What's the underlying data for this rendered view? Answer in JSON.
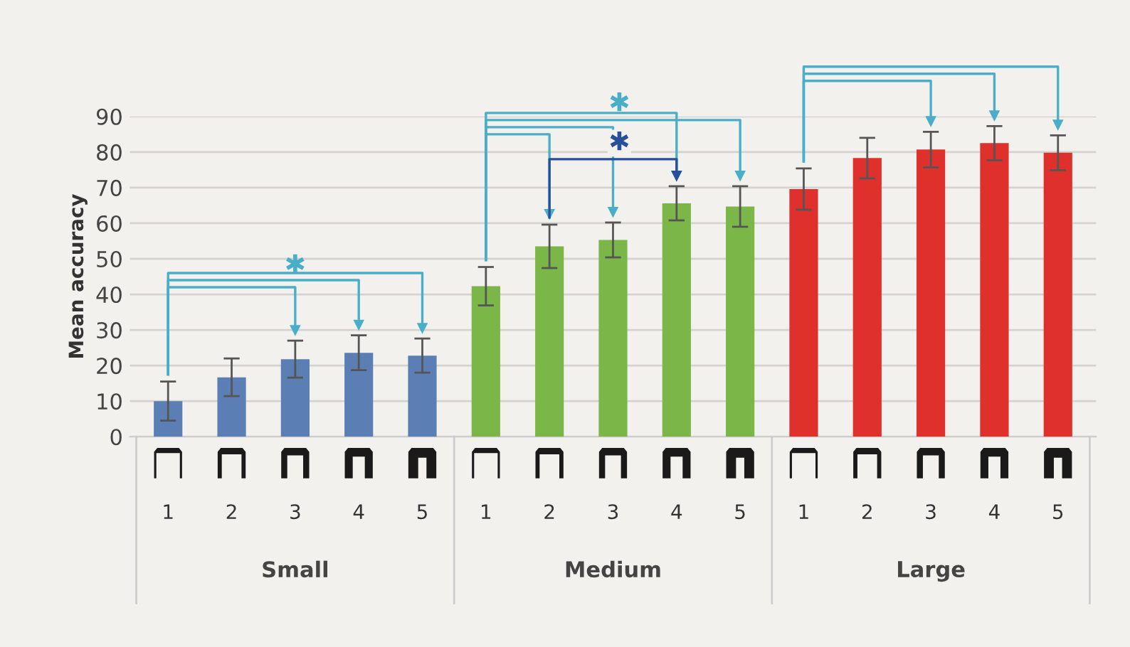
{
  "chart_data": {
    "type": "bar",
    "ylabel": "Mean accuracy",
    "categories": [
      "1",
      "2",
      "3",
      "4",
      "5",
      "1",
      "2",
      "3",
      "4",
      "5",
      "1",
      "2",
      "3",
      "4",
      "5"
    ],
    "values": [
      10,
      16.7,
      21.8,
      23.6,
      22.8,
      42.3,
      53.5,
      55.3,
      65.6,
      64.7,
      69.6,
      78.3,
      80.7,
      82.5,
      79.8
    ],
    "errors": [
      5.5,
      5.3,
      5.2,
      4.9,
      4.8,
      5.4,
      6.1,
      4.9,
      4.8,
      5.7,
      5.8,
      5.7,
      5.0,
      4.8,
      4.9
    ],
    "colors": [
      "#5b7fb5",
      "#5b7fb5",
      "#5b7fb5",
      "#5b7fb5",
      "#5b7fb5",
      "#7ab648",
      "#7ab648",
      "#7ab648",
      "#7ab648",
      "#7ab648",
      "#e0302b",
      "#e0302b",
      "#e0302b",
      "#e0302b",
      "#e0302b"
    ],
    "ylim": [
      0,
      90
    ],
    "yticks": [
      0,
      10,
      20,
      30,
      40,
      50,
      60,
      70,
      80,
      90
    ],
    "grid": "y",
    "annotations": [
      "Small",
      "Medium",
      "Large",
      "✱",
      "✱",
      "✱"
    ]
  }
}
